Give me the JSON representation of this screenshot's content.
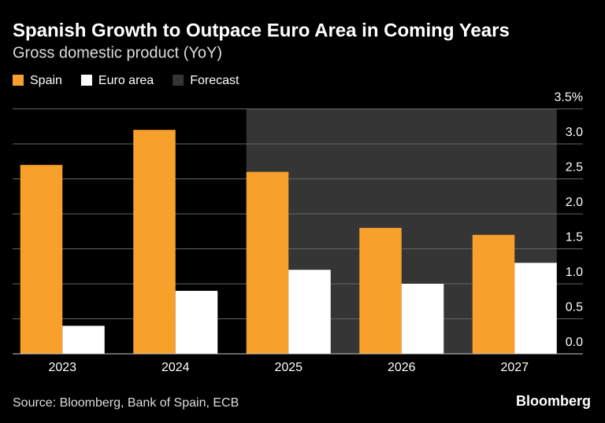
{
  "chart_data": {
    "type": "bar",
    "title": "Spanish Growth to Outpace Euro Area in Coming Years",
    "subtitle": "Gross domestic product (YoY)",
    "categories": [
      "2023",
      "2024",
      "2025",
      "2026",
      "2027"
    ],
    "series": [
      {
        "name": "Spain",
        "color": "#f7a12c",
        "values": [
          2.7,
          3.2,
          2.6,
          1.8,
          1.7
        ]
      },
      {
        "name": "Euro area",
        "color": "#ffffff",
        "values": [
          0.4,
          0.9,
          1.2,
          1.0,
          1.3
        ]
      }
    ],
    "forecast": {
      "name": "Forecast",
      "color": "#353535",
      "start": "2025"
    },
    "ylim": [
      0,
      3.5
    ],
    "yticks": [
      {
        "value": 0,
        "label": "0.0"
      },
      0.5,
      {
        "value": 1,
        "label": "1.0"
      },
      1.5,
      {
        "value": 2,
        "label": "2.0"
      },
      2.5,
      {
        "value": 3,
        "label": "3.0"
      },
      {
        "value": 3.5,
        "label": "3.5%"
      }
    ],
    "grid": true,
    "source": "Source: Bloomberg, Bank of Spain, ECB",
    "brand": "Bloomberg"
  }
}
